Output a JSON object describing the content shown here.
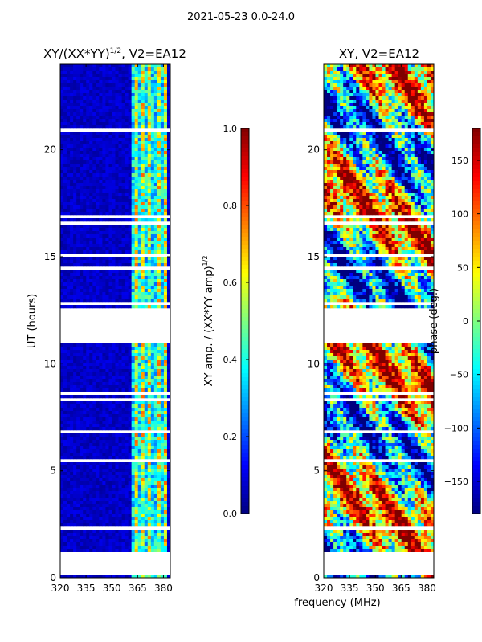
{
  "figure": {
    "suptitle": "2021-05-23 0.0-24.0"
  },
  "colors": {
    "jet": [
      "#00007f",
      "#0000ff",
      "#007fff",
      "#00ffff",
      "#7fff7f",
      "#ffff00",
      "#ff7f00",
      "#ff0000",
      "#7f0000"
    ],
    "background": "#ffffff",
    "gap": "#ffffff"
  },
  "chart_data": [
    {
      "type": "heatmap",
      "title_main": "XY/(XX*YY)",
      "title_sup": "1/2",
      "title_tail": ", V2=EA12",
      "xlabel": "",
      "ylabel": "UT (hours)",
      "xlim": [
        320,
        384
      ],
      "ylim": [
        0,
        24
      ],
      "xticks": [
        320,
        335,
        350,
        365,
        380
      ],
      "yticks": [
        0,
        5,
        10,
        15,
        20
      ],
      "colorbar": {
        "label_main": "XY amp. / (XX*YY amp)",
        "label_sup": "1/2",
        "range": [
          0.0,
          1.0
        ],
        "ticks": [
          "0.0",
          "0.2",
          "0.4",
          "0.6",
          "0.8",
          "1.0"
        ],
        "tick_values": [
          0.0,
          0.2,
          0.4,
          0.6,
          0.8,
          1.0
        ]
      },
      "data_gaps_hours": [
        [
          0.15,
          1.2
        ],
        [
          11.1,
          12.55
        ]
      ],
      "bright_band_mhz": [
        362,
        382
      ],
      "description_values": {
        "background_level": 0.05,
        "band_level_min": 0.3,
        "band_level_max": 0.85
      }
    },
    {
      "type": "heatmap",
      "title": "XY, V2=EA12",
      "xlabel": "frequency (MHz)",
      "ylabel": "",
      "xlim": [
        320,
        384
      ],
      "ylim": [
        0,
        24
      ],
      "xticks": [
        320,
        335,
        350,
        365,
        380
      ],
      "yticks": [
        0,
        5,
        10,
        15,
        20
      ],
      "colorbar": {
        "label": "phase (deg.)",
        "range": [
          -180,
          180
        ],
        "ticks": [
          "150",
          "100",
          "50",
          "0",
          "−50",
          "−100",
          "−150"
        ],
        "tick_values": [
          150,
          100,
          50,
          0,
          -50,
          -100,
          -150
        ]
      },
      "data_gaps_hours": [
        [
          0.15,
          1.2
        ],
        [
          11.1,
          12.55
        ]
      ]
    }
  ]
}
